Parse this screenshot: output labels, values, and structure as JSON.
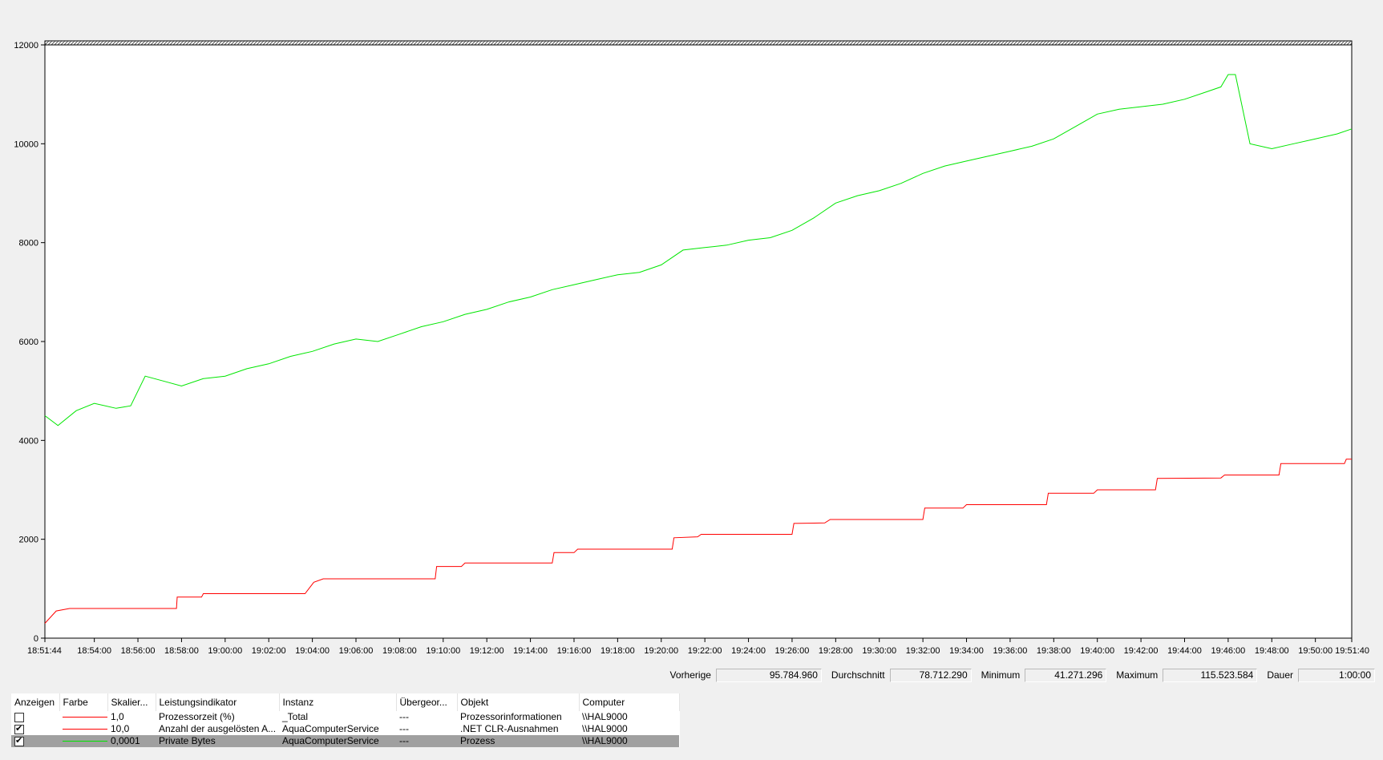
{
  "chart_data": {
    "type": "line",
    "ylim": [
      0,
      12000
    ],
    "y_ticks": [
      "12000",
      "10000",
      "8000",
      "6000",
      "4000",
      "2000",
      "0"
    ],
    "x_range": [
      "18:51:44",
      "19:51:40"
    ],
    "x_ticks": [
      "18:51:44",
      "18:54:00",
      "18:56:00",
      "18:58:00",
      "19:00:00",
      "19:02:00",
      "19:04:00",
      "19:06:00",
      "19:08:00",
      "19:10:00",
      "19:12:00",
      "19:14:00",
      "19:16:00",
      "19:18:00",
      "19:20:00",
      "19:22:00",
      "19:24:00",
      "19:26:00",
      "19:28:00",
      "19:30:00",
      "19:32:00",
      "19:34:00",
      "19:36:00",
      "19:38:00",
      "19:40:00",
      "19:42:00",
      "19:44:00",
      "19:46:00",
      "19:48:00",
      "19:50:00",
      "19:51:40"
    ],
    "grid": false,
    "series": [
      {
        "name": "Anzahl der ausgelösten Ausnahmen",
        "color": "#ff0000",
        "points": [
          [
            "18:51:44",
            300
          ],
          [
            "18:52:15",
            550
          ],
          [
            "18:52:52",
            600
          ],
          [
            "18:57:46",
            600
          ],
          [
            "18:57:48",
            830
          ],
          [
            "18:58:55",
            830
          ],
          [
            "18:59:00",
            900
          ],
          [
            "19:03:40",
            900
          ],
          [
            "19:04:04",
            1130
          ],
          [
            "19:04:30",
            1200
          ],
          [
            "19:09:38",
            1200
          ],
          [
            "19:09:42",
            1450
          ],
          [
            "19:10:50",
            1450
          ],
          [
            "19:11:00",
            1520
          ],
          [
            "19:15:00",
            1520
          ],
          [
            "19:15:05",
            1730
          ],
          [
            "19:16:00",
            1730
          ],
          [
            "19:16:10",
            1800
          ],
          [
            "19:20:30",
            1800
          ],
          [
            "19:20:35",
            2030
          ],
          [
            "19:21:40",
            2050
          ],
          [
            "19:21:50",
            2100
          ],
          [
            "19:26:00",
            2100
          ],
          [
            "19:26:05",
            2320
          ],
          [
            "19:27:30",
            2330
          ],
          [
            "19:27:45",
            2400
          ],
          [
            "19:32:00",
            2400
          ],
          [
            "19:32:05",
            2630
          ],
          [
            "19:33:50",
            2630
          ],
          [
            "19:34:00",
            2700
          ],
          [
            "19:37:40",
            2700
          ],
          [
            "19:37:45",
            2930
          ],
          [
            "19:39:50",
            2930
          ],
          [
            "19:40:00",
            3000
          ],
          [
            "19:42:40",
            3000
          ],
          [
            "19:42:45",
            3230
          ],
          [
            "19:45:40",
            3240
          ],
          [
            "19:45:50",
            3300
          ],
          [
            "19:48:20",
            3300
          ],
          [
            "19:48:25",
            3530
          ],
          [
            "19:51:20",
            3530
          ],
          [
            "19:51:25",
            3620
          ],
          [
            "19:51:40",
            3620
          ]
        ]
      },
      {
        "name": "Private Bytes",
        "color": "#00e600",
        "points": [
          [
            "18:51:44",
            4500
          ],
          [
            "18:52:20",
            4300
          ],
          [
            "18:53:10",
            4600
          ],
          [
            "18:54:00",
            4750
          ],
          [
            "18:55:00",
            4650
          ],
          [
            "18:55:40",
            4700
          ],
          [
            "18:56:20",
            5300
          ],
          [
            "18:57:10",
            5200
          ],
          [
            "18:58:00",
            5100
          ],
          [
            "18:59:00",
            5250
          ],
          [
            "19:00:00",
            5300
          ],
          [
            "19:01:00",
            5450
          ],
          [
            "19:02:00",
            5550
          ],
          [
            "19:03:00",
            5700
          ],
          [
            "19:04:00",
            5800
          ],
          [
            "19:05:00",
            5950
          ],
          [
            "19:06:00",
            6050
          ],
          [
            "19:07:00",
            6000
          ],
          [
            "19:08:00",
            6150
          ],
          [
            "19:09:00",
            6300
          ],
          [
            "19:10:00",
            6400
          ],
          [
            "19:11:00",
            6550
          ],
          [
            "19:12:00",
            6650
          ],
          [
            "19:13:00",
            6800
          ],
          [
            "19:14:00",
            6900
          ],
          [
            "19:15:00",
            7050
          ],
          [
            "19:16:00",
            7150
          ],
          [
            "19:17:00",
            7250
          ],
          [
            "19:18:00",
            7350
          ],
          [
            "19:19:00",
            7400
          ],
          [
            "19:20:00",
            7550
          ],
          [
            "19:21:00",
            7850
          ],
          [
            "19:22:00",
            7900
          ],
          [
            "19:23:00",
            7950
          ],
          [
            "19:24:00",
            8050
          ],
          [
            "19:25:00",
            8100
          ],
          [
            "19:26:00",
            8250
          ],
          [
            "19:27:00",
            8500
          ],
          [
            "19:28:00",
            8800
          ],
          [
            "19:29:00",
            8950
          ],
          [
            "19:30:00",
            9050
          ],
          [
            "19:31:00",
            9200
          ],
          [
            "19:32:00",
            9400
          ],
          [
            "19:33:00",
            9550
          ],
          [
            "19:34:00",
            9650
          ],
          [
            "19:35:00",
            9750
          ],
          [
            "19:36:00",
            9850
          ],
          [
            "19:37:00",
            9950
          ],
          [
            "19:38:00",
            10100
          ],
          [
            "19:39:00",
            10350
          ],
          [
            "19:40:00",
            10600
          ],
          [
            "19:41:00",
            10700
          ],
          [
            "19:42:00",
            10750
          ],
          [
            "19:43:00",
            10800
          ],
          [
            "19:44:00",
            10900
          ],
          [
            "19:45:00",
            11050
          ],
          [
            "19:45:40",
            11150
          ],
          [
            "19:46:00",
            11400
          ],
          [
            "19:46:20",
            11400
          ],
          [
            "19:47:00",
            10000
          ],
          [
            "19:48:00",
            9900
          ],
          [
            "19:49:00",
            10000
          ],
          [
            "19:50:00",
            10100
          ],
          [
            "19:51:00",
            10200
          ],
          [
            "19:51:40",
            10300
          ]
        ]
      }
    ]
  },
  "stats": {
    "previous_label": "Vorherige",
    "previous_value": "95.784.960",
    "average_label": "Durchschnitt",
    "average_value": "78.712.290",
    "minimum_label": "Minimum",
    "minimum_value": "41.271.296",
    "maximum_label": "Maximum",
    "maximum_value": "115.523.584",
    "duration_label": "Dauer",
    "duration_value": "1:00:00"
  },
  "legend": {
    "headers": {
      "show": "Anzeigen",
      "color": "Farbe",
      "scale": "Skalier...",
      "counter": "Leistungsindikator",
      "instance": "Instanz",
      "parent": "Übergeor...",
      "object": "Objekt",
      "computer": "Computer"
    },
    "rows": [
      {
        "checked": false,
        "color": "#ff0000",
        "scale": "1,0",
        "counter": "Prozessorzeit (%)",
        "instance": "_Total",
        "parent": "---",
        "object": "Prozessorinformationen",
        "computer": "\\\\HAL9000",
        "selected": false
      },
      {
        "checked": true,
        "color": "#ff0000",
        "scale": "10,0",
        "counter": "Anzahl der ausgelösten A...",
        "instance": "AquaComputerService",
        "parent": "---",
        "object": ".NET CLR-Ausnahmen",
        "computer": "\\\\HAL9000",
        "selected": false
      },
      {
        "checked": true,
        "color": "#00e600",
        "scale": "0,0001",
        "counter": "Private Bytes",
        "instance": "AquaComputerService",
        "parent": "---",
        "object": "Prozess",
        "computer": "\\\\HAL9000",
        "selected": true
      }
    ]
  }
}
